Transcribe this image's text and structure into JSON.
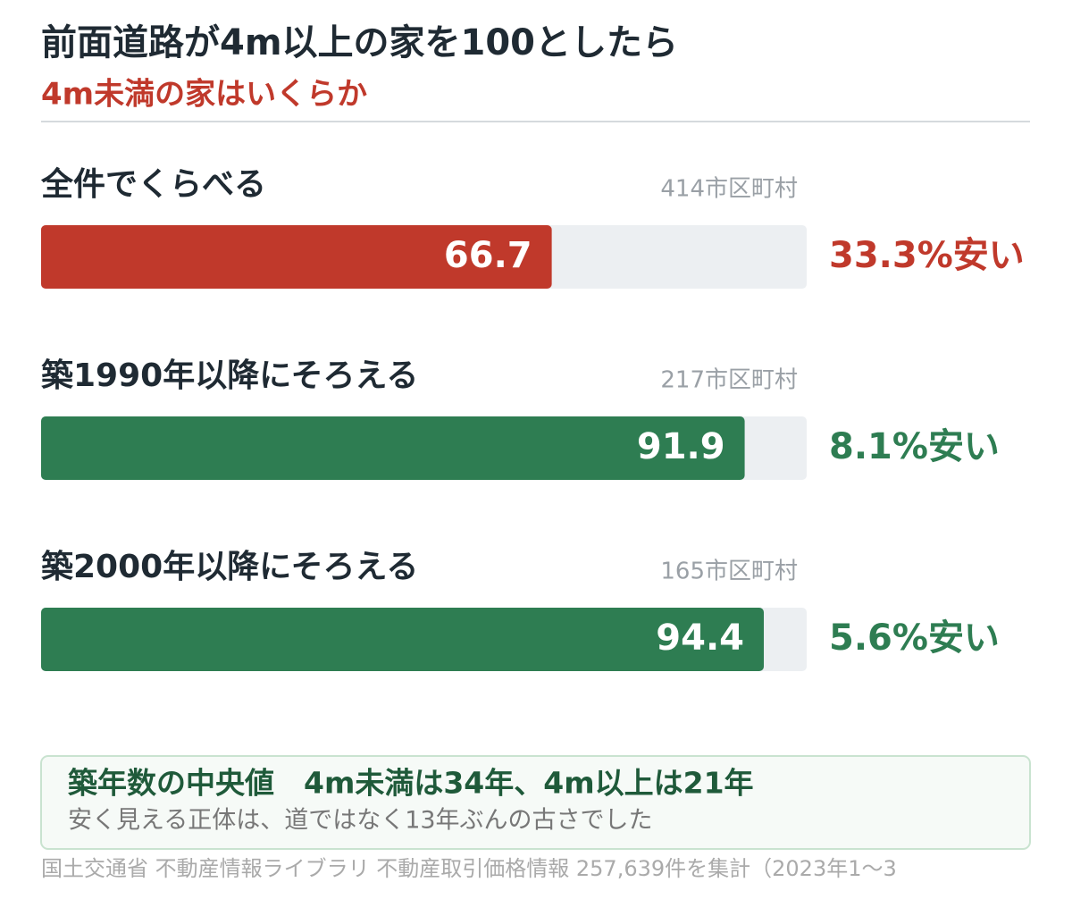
{
  "chart_data": {
    "type": "bar",
    "orientation": "horizontal",
    "title": "前面道路が4m以上の家を100としたら",
    "subtitle": "4m未満の家はいくらか",
    "categories": [
      "全件でくらべる",
      "築1990年以降にそろえる",
      "築2000年以降にそろえる"
    ],
    "counts": [
      "414市区町村",
      "217市区町村",
      "165市区町村"
    ],
    "values": [
      66.7,
      91.9,
      94.4
    ],
    "colors": [
      "#c0392b",
      "#2e7d52",
      "#2e7d52"
    ],
    "notes": [
      "33.3%安い",
      "8.1%安い",
      "5.6%安い"
    ],
    "track_color": "#eceff2",
    "xlim": [
      0,
      100
    ]
  },
  "footer": {
    "heading": "築年数の中央値　4m未満は34年、4m以上は21年",
    "text": "安く見える正体は、道ではなく13年ぶんの古さでした",
    "source": "国土交通省 不動産情報ライブラリ 不動産取引価格情報 257,639件を集計（2023年1〜3"
  }
}
